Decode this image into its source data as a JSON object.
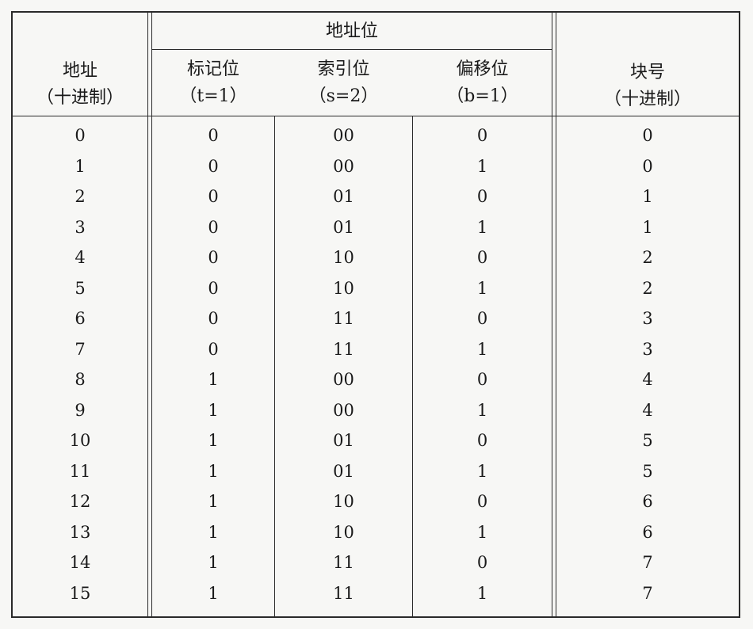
{
  "header": {
    "group_title": "地址位",
    "address_label": "地址",
    "address_sub": "（十进制）",
    "tag_label": "标记位",
    "tag_sub": "（t=1）",
    "index_label": "索引位",
    "index_sub": "（s=2）",
    "offset_label": "偏移位",
    "offset_sub": "（b=1）",
    "block_label": "块号",
    "block_sub": "（十进制）"
  },
  "rows": [
    {
      "address": "0",
      "tag": "0",
      "index": "00",
      "offset": "0",
      "block": "0"
    },
    {
      "address": "1",
      "tag": "0",
      "index": "00",
      "offset": "1",
      "block": "0"
    },
    {
      "address": "2",
      "tag": "0",
      "index": "01",
      "offset": "0",
      "block": "1"
    },
    {
      "address": "3",
      "tag": "0",
      "index": "01",
      "offset": "1",
      "block": "1"
    },
    {
      "address": "4",
      "tag": "0",
      "index": "10",
      "offset": "0",
      "block": "2"
    },
    {
      "address": "5",
      "tag": "0",
      "index": "10",
      "offset": "1",
      "block": "2"
    },
    {
      "address": "6",
      "tag": "0",
      "index": "11",
      "offset": "0",
      "block": "3"
    },
    {
      "address": "7",
      "tag": "0",
      "index": "11",
      "offset": "1",
      "block": "3"
    },
    {
      "address": "8",
      "tag": "1",
      "index": "00",
      "offset": "0",
      "block": "4"
    },
    {
      "address": "9",
      "tag": "1",
      "index": "00",
      "offset": "1",
      "block": "4"
    },
    {
      "address": "10",
      "tag": "1",
      "index": "01",
      "offset": "0",
      "block": "5"
    },
    {
      "address": "11",
      "tag": "1",
      "index": "01",
      "offset": "1",
      "block": "5"
    },
    {
      "address": "12",
      "tag": "1",
      "index": "10",
      "offset": "0",
      "block": "6"
    },
    {
      "address": "13",
      "tag": "1",
      "index": "10",
      "offset": "1",
      "block": "6"
    },
    {
      "address": "14",
      "tag": "1",
      "index": "11",
      "offset": "0",
      "block": "7"
    },
    {
      "address": "15",
      "tag": "1",
      "index": "11",
      "offset": "1",
      "block": "7"
    }
  ]
}
